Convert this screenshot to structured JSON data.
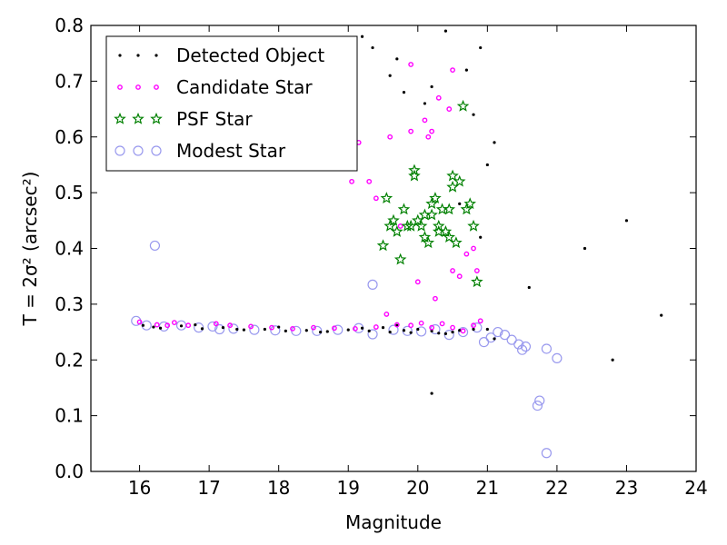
{
  "chart_data": {
    "type": "scatter",
    "xlabel": "Magnitude",
    "ylabel": "T = 2σ² (arcsec²)",
    "xlim": [
      15.3,
      24
    ],
    "ylim": [
      0.0,
      0.8
    ],
    "xticks": [
      16,
      17,
      18,
      19,
      20,
      21,
      22,
      23,
      24
    ],
    "yticks": [
      0.0,
      0.1,
      0.2,
      0.3,
      0.4,
      0.5,
      0.6,
      0.7,
      0.8
    ],
    "legend_position": "top-left",
    "colors": {
      "detected": "#000000",
      "candidate": "#ff00ff",
      "psf": "#008000",
      "modest": "#9999ee"
    },
    "series": [
      {
        "name": "Detected Object",
        "marker": "dot",
        "x": [
          16.05,
          16.3,
          16.6,
          16.9,
          17.2,
          17.5,
          17.8,
          18.1,
          18.4,
          18.7,
          19.0,
          19.3,
          19.6,
          19.9,
          20.2,
          20.5,
          20.8,
          21.1,
          16.2,
          16.8,
          17.4,
          18.0,
          18.6,
          19.2,
          19.8,
          20.4,
          21.0,
          19.5,
          19.7,
          20.0,
          20.3,
          20.6,
          20.4,
          20.9,
          21.1,
          20.7,
          20.2,
          20.8,
          21.0,
          20.6,
          20.9,
          19.7,
          19.6,
          19.8,
          20.1,
          19.2,
          19.35,
          19.1,
          20.2,
          21.6,
          22.4,
          23.0,
          22.8,
          23.5
        ],
        "y": [
          0.262,
          0.257,
          0.261,
          0.256,
          0.258,
          0.254,
          0.255,
          0.252,
          0.253,
          0.251,
          0.254,
          0.252,
          0.25,
          0.249,
          0.252,
          0.25,
          0.255,
          0.238,
          0.259,
          0.263,
          0.255,
          0.259,
          0.25,
          0.257,
          0.253,
          0.247,
          0.255,
          0.258,
          0.262,
          0.255,
          0.248,
          0.253,
          0.79,
          0.76,
          0.59,
          0.72,
          0.69,
          0.64,
          0.55,
          0.48,
          0.42,
          0.74,
          0.71,
          0.68,
          0.66,
          0.78,
          0.76,
          0.61,
          0.14,
          0.33,
          0.4,
          0.45,
          0.2,
          0.28
        ]
      },
      {
        "name": "Candidate Star",
        "marker": "open-dot",
        "x": [
          16.0,
          16.25,
          16.5,
          16.7,
          17.1,
          17.3,
          17.6,
          17.9,
          18.2,
          18.5,
          18.8,
          19.1,
          19.4,
          19.55,
          19.7,
          19.9,
          20.05,
          20.2,
          20.35,
          20.5,
          20.65,
          20.8,
          16.4,
          19.15,
          19.3,
          19.05,
          19.6,
          19.9,
          20.1,
          20.3,
          20.5,
          20.9,
          19.4,
          19.75,
          20.45,
          20.2,
          20.6,
          20.8,
          20.7,
          20.25,
          20.0,
          20.5,
          19.9,
          20.15,
          20.85
        ],
        "y": [
          0.268,
          0.263,
          0.267,
          0.262,
          0.265,
          0.262,
          0.26,
          0.258,
          0.256,
          0.258,
          0.257,
          0.256,
          0.259,
          0.282,
          0.263,
          0.262,
          0.266,
          0.258,
          0.265,
          0.258,
          0.252,
          0.262,
          0.262,
          0.59,
          0.52,
          0.52,
          0.6,
          0.73,
          0.63,
          0.67,
          0.72,
          0.27,
          0.49,
          0.44,
          0.65,
          0.61,
          0.35,
          0.4,
          0.39,
          0.31,
          0.34,
          0.36,
          0.61,
          0.6,
          0.36
        ]
      },
      {
        "name": "PSF Star",
        "marker": "star",
        "x": [
          19.5,
          19.6,
          19.7,
          19.8,
          19.9,
          19.95,
          20.0,
          20.05,
          20.1,
          20.15,
          20.2,
          20.25,
          20.3,
          20.35,
          20.4,
          20.45,
          20.5,
          20.6,
          20.7,
          20.8,
          20.85,
          19.55,
          19.65,
          19.85,
          19.95,
          20.2,
          20.3,
          20.45,
          20.55,
          20.75,
          20.65,
          20.5,
          19.75,
          20.1
        ],
        "y": [
          0.405,
          0.44,
          0.43,
          0.47,
          0.44,
          0.53,
          0.45,
          0.44,
          0.46,
          0.41,
          0.48,
          0.49,
          0.44,
          0.47,
          0.43,
          0.42,
          0.53,
          0.52,
          0.47,
          0.44,
          0.34,
          0.49,
          0.45,
          0.44,
          0.54,
          0.46,
          0.43,
          0.47,
          0.41,
          0.48,
          0.655,
          0.51,
          0.38,
          0.42
        ]
      },
      {
        "name": "Modest Star",
        "marker": "open-circle",
        "x": [
          15.95,
          16.1,
          16.35,
          16.6,
          16.85,
          17.05,
          17.15,
          17.35,
          17.65,
          17.95,
          18.25,
          18.55,
          18.85,
          19.15,
          19.35,
          19.65,
          19.85,
          20.05,
          20.25,
          20.45,
          20.65,
          20.85,
          21.05,
          21.15,
          21.25,
          21.35,
          21.45,
          21.55,
          21.75,
          21.85,
          21.72,
          21.85,
          16.22,
          19.35,
          20.95,
          21.5,
          22.0
        ],
        "y": [
          0.27,
          0.262,
          0.26,
          0.262,
          0.258,
          0.26,
          0.255,
          0.256,
          0.254,
          0.253,
          0.252,
          0.252,
          0.254,
          0.257,
          0.246,
          0.254,
          0.252,
          0.251,
          0.255,
          0.245,
          0.25,
          0.258,
          0.24,
          0.25,
          0.245,
          0.236,
          0.228,
          0.224,
          0.127,
          0.22,
          0.118,
          0.033,
          0.405,
          0.335,
          0.232,
          0.218,
          0.203
        ]
      }
    ]
  }
}
